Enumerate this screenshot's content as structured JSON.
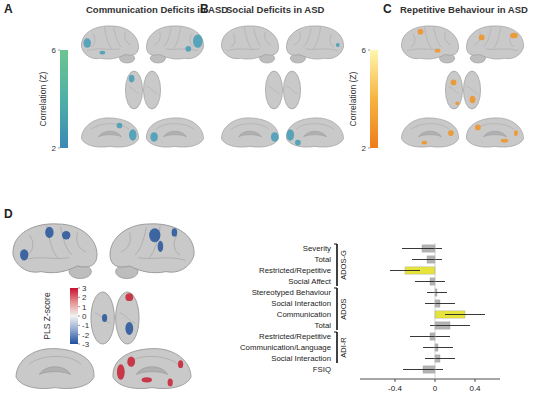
{
  "panels": [
    {
      "letter": "A",
      "title": "Communication Deficits in ASD"
    },
    {
      "letter": "B",
      "title": "Social Deficits in ASD"
    },
    {
      "letter": "C",
      "title": "Repetitive Behaviour in ASD"
    },
    {
      "letter": "D"
    }
  ],
  "colorbars": [
    {
      "label": "Correlation (Z)",
      "range": [
        2,
        6
      ],
      "ticks": [
        2,
        6
      ]
    },
    {
      "label": "Correlation (Z)",
      "range": [
        2,
        6
      ],
      "ticks": [
        2,
        6
      ]
    },
    {
      "label": "PLS Z-score",
      "range": [
        -3,
        3
      ],
      "ticks": [
        -3,
        -2,
        -1,
        0,
        1,
        2,
        3
      ]
    }
  ],
  "chart_data": {
    "type": "bar",
    "orientation": "horizontal",
    "categories": [
      "Severity",
      "Total",
      "Restricted/Repetitive",
      "Social Affect",
      "Stereotyped Behaviour",
      "Social Interaction",
      "Communication",
      "Total",
      "Restricted/Repetitive",
      "Communication/Language",
      "Social Interaction",
      "FSIQ"
    ],
    "values": [
      -0.13,
      -0.08,
      -0.3,
      -0.05,
      0.02,
      0.05,
      0.3,
      0.15,
      -0.05,
      0.03,
      0.05,
      -0.12
    ],
    "errors": [
      0.2,
      0.15,
      0.15,
      0.15,
      0.1,
      0.15,
      0.2,
      0.2,
      0.2,
      0.15,
      0.15,
      0.2
    ],
    "colors": [
      "#b3b3b3",
      "#b3b3b3",
      "#e6e33a",
      "#b3b3b3",
      "#b3b3b3",
      "#b3b3b3",
      "#e6e33a",
      "#b3b3b3",
      "#b3b3b3",
      "#b3b3b3",
      "#b3b3b3",
      "#b3b3b3"
    ],
    "groups": [
      {
        "label": "ADOS-G",
        "size": 4
      },
      {
        "label": "ADOS",
        "size": 4
      },
      {
        "label": "ADI-R",
        "size": 3
      }
    ],
    "xlim": [
      -0.75,
      0.65
    ],
    "xticks": [
      -0.4,
      0,
      0.4
    ]
  }
}
